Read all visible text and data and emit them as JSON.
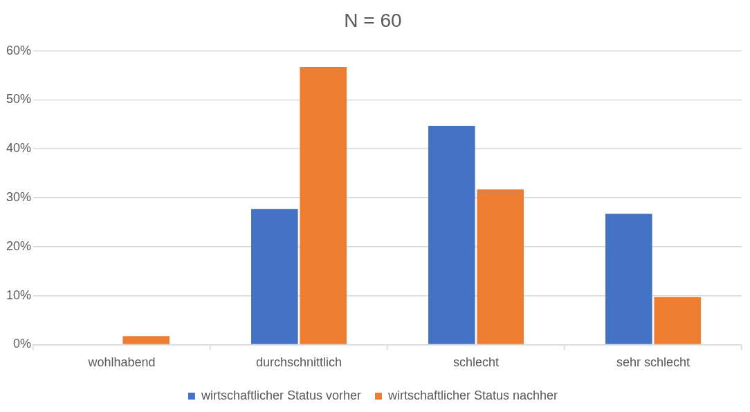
{
  "chart_data": {
    "type": "bar",
    "title": "N = 60",
    "categories": [
      "wohlhabend",
      "durchschnittlich",
      "schlecht",
      "sehr schlecht"
    ],
    "series": [
      {
        "name": "wirtschaftlicher Status vorher",
        "color": "#4472c4",
        "values": [
          0,
          27.7,
          44.7,
          26.7
        ]
      },
      {
        "name": "wirtschaftlicher Status nachher",
        "color": "#ed7d31",
        "values": [
          1.7,
          56.7,
          31.7,
          9.7
        ]
      }
    ],
    "ylim": [
      0,
      60
    ],
    "yticks": [
      {
        "value": 0,
        "label": "0%"
      },
      {
        "value": 10,
        "label": "10%"
      },
      {
        "value": 20,
        "label": "20%"
      },
      {
        "value": 30,
        "label": "30%"
      },
      {
        "value": 40,
        "label": "40%"
      },
      {
        "value": 50,
        "label": "50%"
      },
      {
        "value": 60,
        "label": "60%"
      }
    ],
    "grid": "y",
    "legend": "bottom"
  }
}
